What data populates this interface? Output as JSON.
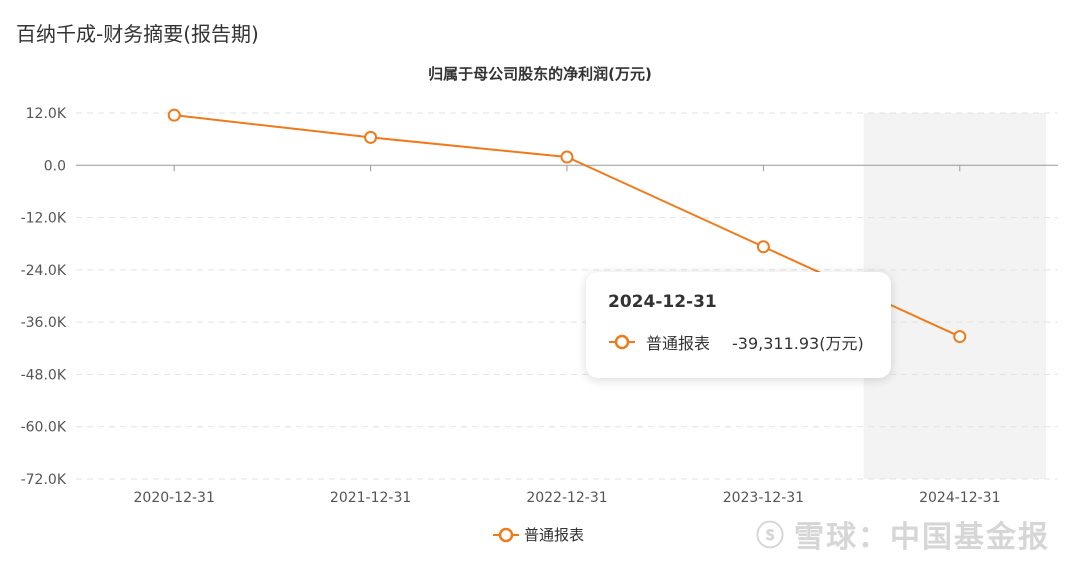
{
  "page": {
    "title": "百纳千成-财务摘要(报告期)"
  },
  "chart_data": {
    "type": "line",
    "title": "归属于母公司股东的净利润(万元)",
    "categories": [
      "2020-12-31",
      "2021-12-31",
      "2022-12-31",
      "2023-12-31",
      "2024-12-31"
    ],
    "series": [
      {
        "name": "普通报表",
        "values": [
          11500,
          6400,
          1900,
          -18700,
          -39311.93
        ],
        "color": "#f07a1a"
      }
    ],
    "ylim": [
      -72000,
      12000
    ],
    "yticks": [
      12000,
      0,
      -12000,
      -24000,
      -36000,
      -48000,
      -60000,
      -72000
    ],
    "ytick_labels": [
      "12.0K",
      "0.0",
      "-12.0K",
      "-24.0K",
      "-36.0K",
      "-48.0K",
      "-60.0K",
      "-72.0K"
    ],
    "xlabel": "",
    "ylabel": "",
    "grid": true,
    "legend_position": "bottom-center",
    "highlighted_category": "2024-12-31"
  },
  "tooltip": {
    "date": "2024-12-31",
    "series_name": "普通报表",
    "value": "-39,311.93(万元)"
  },
  "legend": {
    "label": "普通报表"
  },
  "watermark": {
    "text": "雪球：中国基金报",
    "logo": "ⓢ"
  }
}
